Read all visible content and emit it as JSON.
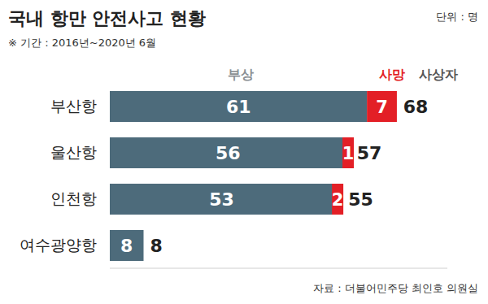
{
  "chart_data": {
    "type": "bar",
    "orientation": "horizontal",
    "stacked": true,
    "data_labels": true,
    "tick_labels": "y",
    "grid": false,
    "title": "국내 항만 안전사고 현황",
    "subtitle": "※ 기간 : 2016년~2020년 6월",
    "unit": "단위 : 명",
    "source": "자료 : 더불어민주당 최인호 의원실",
    "categories": [
      "부산항",
      "울산항",
      "인천항",
      "여수광양항"
    ],
    "series": [
      {
        "name": "부상",
        "color": "#4d6b7b",
        "values": [
          61,
          56,
          53,
          8
        ]
      },
      {
        "name": "사망",
        "color": "#e31f26",
        "values": [
          7,
          1,
          2,
          null
        ]
      }
    ],
    "totals": {
      "name": "사상자",
      "values": [
        68,
        57,
        55,
        8
      ]
    },
    "xlim": [
      0,
      80
    ],
    "xticks": []
  }
}
